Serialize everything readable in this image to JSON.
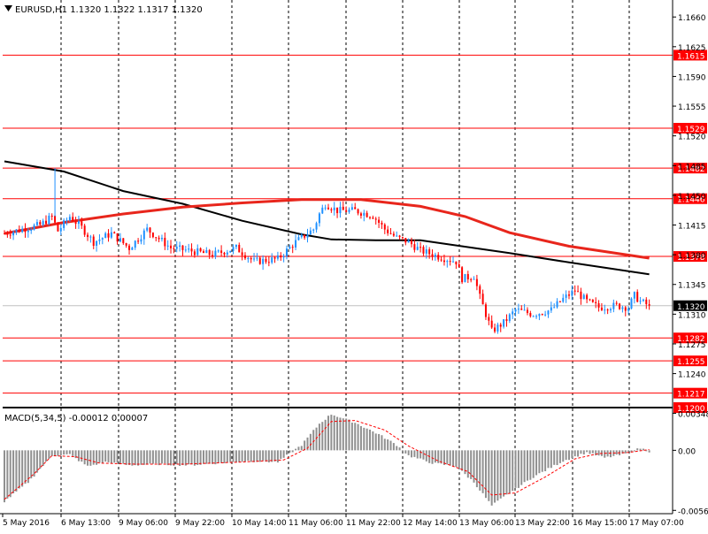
{
  "header": {
    "symbol_info": "EURUSD,H1  1.1320 1.1322 1.1317 1.1320",
    "macd_info": "MACD(5,34,5) -0.00012 0.00007"
  },
  "colors": {
    "background": "#ffffff",
    "bull_candle": "#1e90ff",
    "bear_candle": "#ff0000",
    "level_line": "#ff0000",
    "ma_slow": "#000000",
    "ma_fast": "#e8261c",
    "macd_hist": "#909090",
    "macd_signal": "#ff0000",
    "grid": "#000000"
  },
  "chart_data": [
    {
      "type": "candlestick",
      "symbol": "EURUSD",
      "timeframe": "H1",
      "ylim": [
        1.12,
        1.168
      ],
      "price_ticks": [
        "1.1660",
        "1.1625",
        "1.1590",
        "1.1555",
        "1.1520",
        "1.1485",
        "1.1450",
        "1.1415",
        "1.1380",
        "1.1345",
        "1.1310",
        "1.1275",
        "1.1240"
      ],
      "x_labels": [
        "5 May 2016",
        "6 May 13:00",
        "9 May 06:00",
        "9 May 22:00",
        "10 May 14:00",
        "11 May 06:00",
        "11 May 22:00",
        "12 May 14:00",
        "13 May 06:00",
        "13 May 22:00",
        "16 May 15:00",
        "17 May 07:00"
      ],
      "horizontal_levels": [
        {
          "price": 1.1615,
          "label": "1.1615"
        },
        {
          "price": 1.1529,
          "label": "1.1529"
        },
        {
          "price": 1.1482,
          "label": "1.1482"
        },
        {
          "price": 1.1446,
          "label": "1.1446"
        },
        {
          "price": 1.1378,
          "label": "1.1378"
        },
        {
          "price": 1.1282,
          "label": "1.1282"
        },
        {
          "price": 1.1255,
          "label": "1.1255"
        },
        {
          "price": 1.1217,
          "label": "1.1217"
        },
        {
          "price": 1.12,
          "label": "1.1200"
        }
      ],
      "current_price": {
        "price": 1.132,
        "label": "1.1320"
      },
      "close_path": [
        {
          "bar": 0,
          "close": 1.1405
        },
        {
          "bar": 12,
          "close": 1.1415
        },
        {
          "bar": 16,
          "close": 1.1425
        },
        {
          "bar": 18,
          "close": 1.1408
        },
        {
          "bar": 22,
          "close": 1.1425
        },
        {
          "bar": 26,
          "close": 1.1412
        },
        {
          "bar": 30,
          "close": 1.1395
        },
        {
          "bar": 36,
          "close": 1.1405
        },
        {
          "bar": 42,
          "close": 1.1388
        },
        {
          "bar": 48,
          "close": 1.141
        },
        {
          "bar": 56,
          "close": 1.1388
        },
        {
          "bar": 62,
          "close": 1.1385
        },
        {
          "bar": 70,
          "close": 1.138
        },
        {
          "bar": 78,
          "close": 1.1388
        },
        {
          "bar": 84,
          "close": 1.1372
        },
        {
          "bar": 92,
          "close": 1.1375
        },
        {
          "bar": 98,
          "close": 1.1395
        },
        {
          "bar": 104,
          "close": 1.141
        },
        {
          "bar": 106,
          "close": 1.1428
        },
        {
          "bar": 108,
          "close": 1.144
        },
        {
          "bar": 112,
          "close": 1.1432
        },
        {
          "bar": 118,
          "close": 1.1432
        },
        {
          "bar": 124,
          "close": 1.1426
        },
        {
          "bar": 128,
          "close": 1.141
        },
        {
          "bar": 132,
          "close": 1.14
        },
        {
          "bar": 136,
          "close": 1.1395
        },
        {
          "bar": 140,
          "close": 1.1385
        },
        {
          "bar": 146,
          "close": 1.1378
        },
        {
          "bar": 152,
          "close": 1.1372
        },
        {
          "bar": 154,
          "close": 1.1352
        },
        {
          "bar": 158,
          "close": 1.1355
        },
        {
          "bar": 160,
          "close": 1.133
        },
        {
          "bar": 162,
          "close": 1.131
        },
        {
          "bar": 164,
          "close": 1.129
        },
        {
          "bar": 168,
          "close": 1.13
        },
        {
          "bar": 172,
          "close": 1.1315
        },
        {
          "bar": 178,
          "close": 1.131
        },
        {
          "bar": 184,
          "close": 1.1315
        },
        {
          "bar": 188,
          "close": 1.1328
        },
        {
          "bar": 192,
          "close": 1.1338
        },
        {
          "bar": 196,
          "close": 1.1325
        },
        {
          "bar": 200,
          "close": 1.1318
        },
        {
          "bar": 206,
          "close": 1.132
        },
        {
          "bar": 210,
          "close": 1.1318
        },
        {
          "bar": 212,
          "close": 1.1332
        },
        {
          "bar": 214,
          "close": 1.1325
        },
        {
          "bar": 217,
          "close": 1.132
        }
      ],
      "moving_averages": [
        {
          "color": "#000000",
          "points": [
            {
              "bar": 0,
              "value": 1.149
            },
            {
              "bar": 20,
              "value": 1.1478
            },
            {
              "bar": 40,
              "value": 1.1455
            },
            {
              "bar": 60,
              "value": 1.144
            },
            {
              "bar": 80,
              "value": 1.142
            },
            {
              "bar": 100,
              "value": 1.1404
            },
            {
              "bar": 110,
              "value": 1.1398
            },
            {
              "bar": 125,
              "value": 1.1397
            },
            {
              "bar": 140,
              "value": 1.1397
            },
            {
              "bar": 150,
              "value": 1.1392
            },
            {
              "bar": 170,
              "value": 1.1382
            },
            {
              "bar": 190,
              "value": 1.1371
            },
            {
              "bar": 217,
              "value": 1.1357
            }
          ]
        },
        {
          "color": "#e8261c",
          "points": [
            {
              "bar": 0,
              "value": 1.1405
            },
            {
              "bar": 20,
              "value": 1.1418
            },
            {
              "bar": 40,
              "value": 1.1428
            },
            {
              "bar": 60,
              "value": 1.1436
            },
            {
              "bar": 80,
              "value": 1.1441
            },
            {
              "bar": 100,
              "value": 1.1445
            },
            {
              "bar": 120,
              "value": 1.1445
            },
            {
              "bar": 140,
              "value": 1.1437
            },
            {
              "bar": 155,
              "value": 1.1425
            },
            {
              "bar": 170,
              "value": 1.1406
            },
            {
              "bar": 190,
              "value": 1.139
            },
            {
              "bar": 217,
              "value": 1.1376
            }
          ]
        }
      ]
    },
    {
      "type": "bar",
      "indicator": "MACD(5,34,5)",
      "ylim": [
        -0.0057,
        0.0036
      ],
      "y_ticks": [
        "0.00348",
        "0.00",
        "-0.00564"
      ],
      "hist_path": [
        {
          "bar": 0,
          "value": -0.0048
        },
        {
          "bar": 8,
          "value": -0.003
        },
        {
          "bar": 16,
          "value": -0.0005
        },
        {
          "bar": 22,
          "value": -0.0004
        },
        {
          "bar": 28,
          "value": -0.0015
        },
        {
          "bar": 34,
          "value": -0.0011
        },
        {
          "bar": 42,
          "value": -0.0014
        },
        {
          "bar": 52,
          "value": -0.0013
        },
        {
          "bar": 62,
          "value": -0.0014
        },
        {
          "bar": 72,
          "value": -0.0012
        },
        {
          "bar": 82,
          "value": -0.001
        },
        {
          "bar": 92,
          "value": -0.0011
        },
        {
          "bar": 100,
          "value": 0.0005
        },
        {
          "bar": 106,
          "value": 0.0025
        },
        {
          "bar": 110,
          "value": 0.0034
        },
        {
          "bar": 118,
          "value": 0.0026
        },
        {
          "bar": 126,
          "value": 0.0015
        },
        {
          "bar": 132,
          "value": 0.0005
        },
        {
          "bar": 136,
          "value": -0.0005
        },
        {
          "bar": 144,
          "value": -0.0012
        },
        {
          "bar": 152,
          "value": -0.0015
        },
        {
          "bar": 158,
          "value": -0.003
        },
        {
          "bar": 164,
          "value": -0.0052
        },
        {
          "bar": 170,
          "value": -0.004
        },
        {
          "bar": 178,
          "value": -0.0025
        },
        {
          "bar": 188,
          "value": -0.001
        },
        {
          "bar": 196,
          "value": -0.0002
        },
        {
          "bar": 202,
          "value": -0.0007
        },
        {
          "bar": 208,
          "value": -0.0004
        },
        {
          "bar": 214,
          "value": 0.0002
        },
        {
          "bar": 217,
          "value": -0.0001
        }
      ],
      "signal_path": [
        {
          "bar": 0,
          "value": -0.0046
        },
        {
          "bar": 10,
          "value": -0.0022
        },
        {
          "bar": 16,
          "value": -0.0005
        },
        {
          "bar": 24,
          "value": -0.0006
        },
        {
          "bar": 32,
          "value": -0.0012
        },
        {
          "bar": 44,
          "value": -0.0013
        },
        {
          "bar": 60,
          "value": -0.0013
        },
        {
          "bar": 80,
          "value": -0.0011
        },
        {
          "bar": 94,
          "value": -0.0009
        },
        {
          "bar": 102,
          "value": 0.0002
        },
        {
          "bar": 110,
          "value": 0.0027
        },
        {
          "bar": 118,
          "value": 0.0028
        },
        {
          "bar": 128,
          "value": 0.0019
        },
        {
          "bar": 136,
          "value": 0.0004
        },
        {
          "bar": 146,
          "value": -0.001
        },
        {
          "bar": 156,
          "value": -0.002
        },
        {
          "bar": 164,
          "value": -0.0042
        },
        {
          "bar": 172,
          "value": -0.004
        },
        {
          "bar": 182,
          "value": -0.0025
        },
        {
          "bar": 192,
          "value": -0.0008
        },
        {
          "bar": 200,
          "value": -0.0003
        },
        {
          "bar": 210,
          "value": -0.0002
        },
        {
          "bar": 217,
          "value": 7e-05
        }
      ]
    }
  ]
}
